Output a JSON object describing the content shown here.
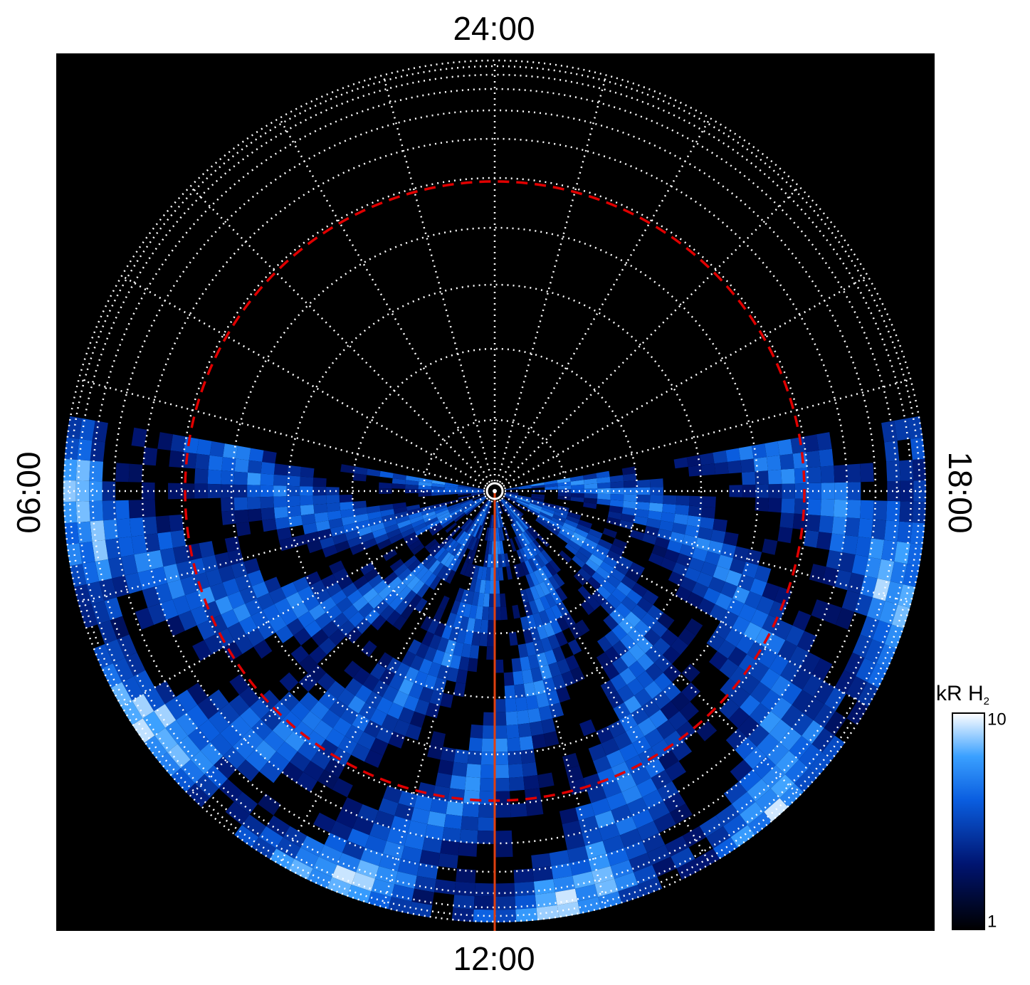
{
  "labels": {
    "top": "24:00",
    "bottom": "12:00",
    "left": "06:00",
    "right": "18:00"
  },
  "colorbar": {
    "title": "kR H",
    "title_subscript": "2",
    "scale": "log",
    "lim": [
      1,
      10
    ],
    "ticks": [
      1,
      10
    ]
  }
}
